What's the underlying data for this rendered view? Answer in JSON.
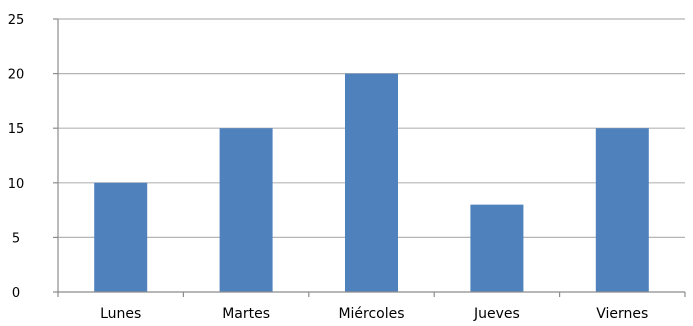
{
  "chart_data": {
    "type": "bar",
    "categories": [
      "Lunes",
      "Martes",
      "Miércoles",
      "Jueves",
      "Viernes"
    ],
    "values": [
      10,
      15,
      20,
      8,
      15
    ],
    "title": "",
    "xlabel": "",
    "ylabel": "",
    "ylim": [
      0,
      25
    ],
    "yticks": [
      0,
      5,
      10,
      15,
      20,
      25
    ],
    "grid": true,
    "legend": "none",
    "bar_color": "#4f81bd"
  }
}
